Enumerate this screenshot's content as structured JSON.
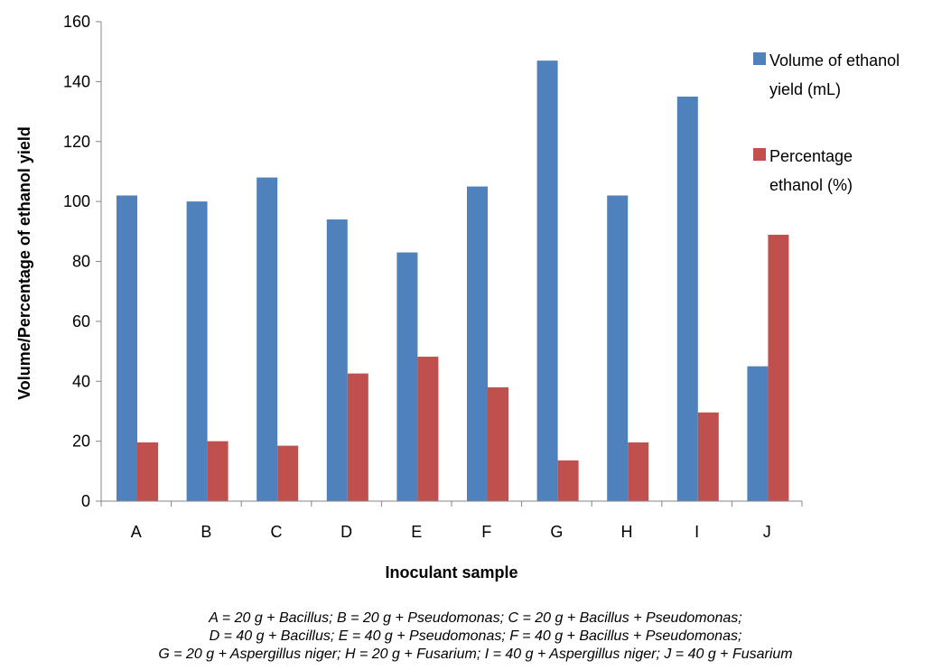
{
  "chart_data": {
    "type": "bar",
    "title": "",
    "xlabel": "Inoculant sample",
    "ylabel": "Volume/Percentage of ethanol yield",
    "categories": [
      "A",
      "B",
      "C",
      "D",
      "E",
      "F",
      "G",
      "H",
      "I",
      "J"
    ],
    "series": [
      {
        "name": "Volume of ethanol yield (mL)",
        "legend_lines": [
          "Volume of ethanol",
          "yield (mL)"
        ],
        "color": "#4F81BD",
        "values": [
          102,
          100,
          108,
          94,
          83,
          105,
          147,
          102,
          135,
          45
        ]
      },
      {
        "name": "Percentage ethanol (%)",
        "legend_lines": [
          "Percentage",
          "ethanol (%)"
        ],
        "color": "#C0504D",
        "values": [
          19.6,
          20,
          18.5,
          42.6,
          48.2,
          38,
          13.6,
          19.6,
          29.6,
          88.9
        ]
      }
    ],
    "ylim": [
      0,
      160
    ],
    "yticks": [
      0,
      20,
      40,
      60,
      80,
      100,
      120,
      140,
      160
    ],
    "grid": false,
    "legend": "right"
  },
  "caption_lines": [
    "A = 20 g + Bacillus; B = 20 g + Pseudomonas; C = 20 g + Bacillus + Pseudomonas;",
    "D = 40 g + Bacillus; E = 40 g + Pseudomonas; F = 40 g + Bacillus + Pseudomonas;",
    "G = 20 g + Aspergillus niger; H = 20 g + Fusarium; I = 40 g + Aspergillus niger; J = 40 g + Fusarium"
  ]
}
